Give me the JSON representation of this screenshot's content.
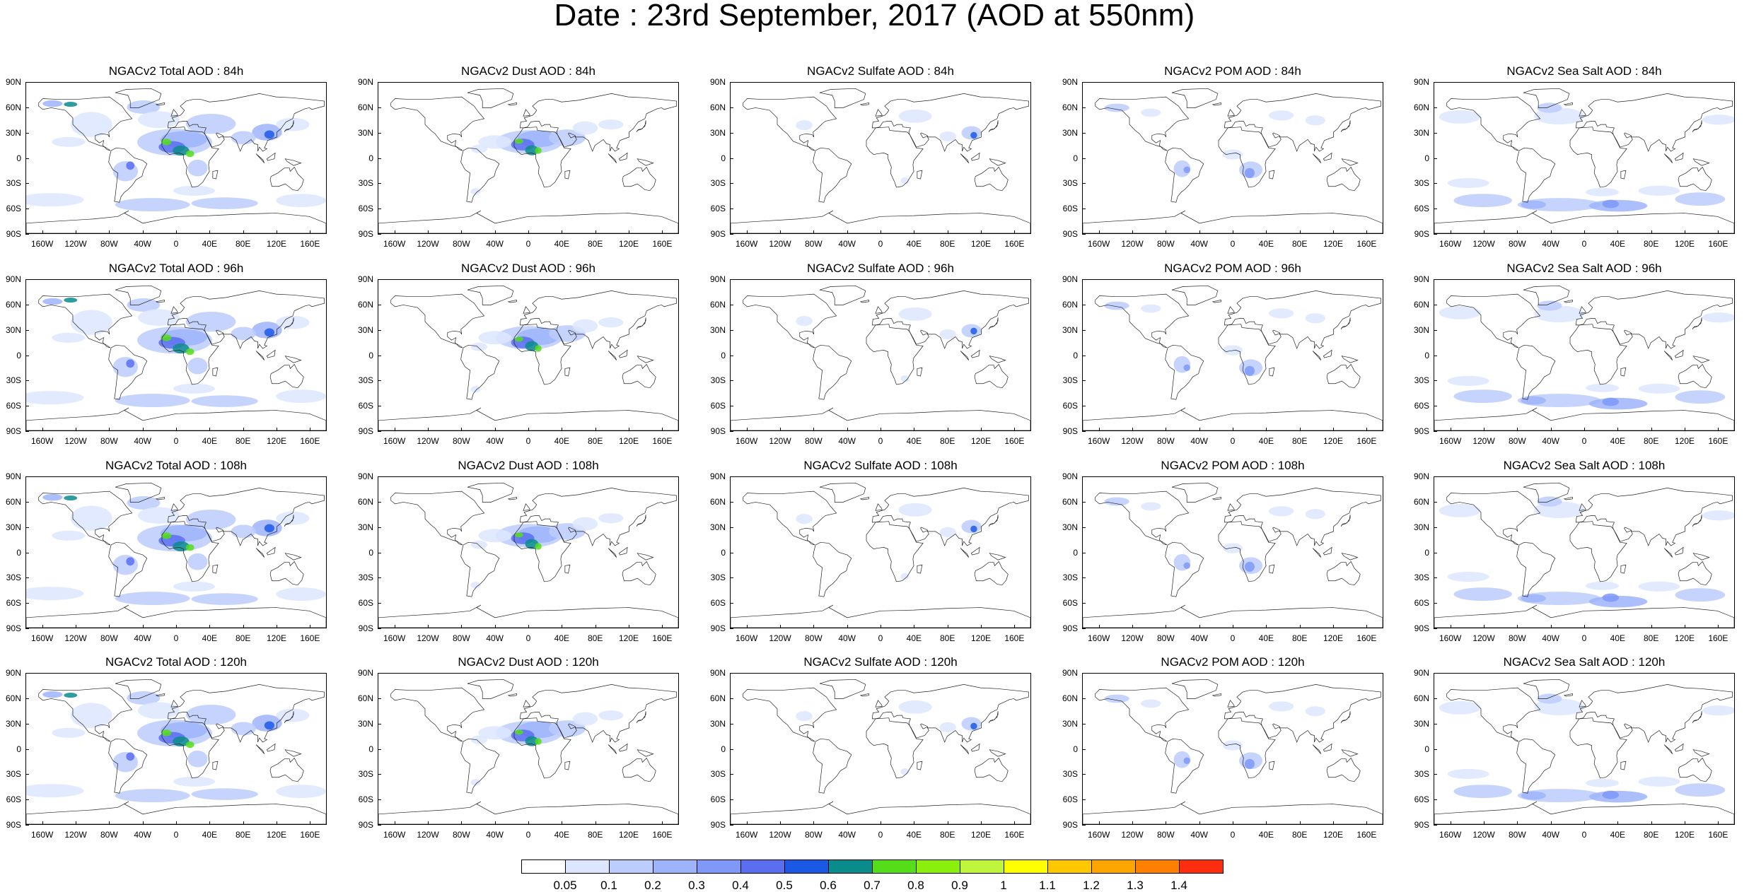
{
  "title": "Date : 23rd September, 2017 (AOD at 550nm)",
  "panels": [
    {
      "title": "NGACv2 Total AOD : 84h",
      "species": "total",
      "hour": 84
    },
    {
      "title": "NGACv2 Dust AOD : 84h",
      "species": "dust",
      "hour": 84
    },
    {
      "title": "NGACv2 Sulfate AOD : 84h",
      "species": "sulfate",
      "hour": 84
    },
    {
      "title": "NGACv2 POM AOD : 84h",
      "species": "pom",
      "hour": 84
    },
    {
      "title": "NGACv2 Sea Salt AOD : 84h",
      "species": "seasalt",
      "hour": 84
    },
    {
      "title": "NGACv2 Total AOD : 96h",
      "species": "total",
      "hour": 96
    },
    {
      "title": "NGACv2 Dust AOD : 96h",
      "species": "dust",
      "hour": 96
    },
    {
      "title": "NGACv2 Sulfate AOD : 96h",
      "species": "sulfate",
      "hour": 96
    },
    {
      "title": "NGACv2 POM AOD : 96h",
      "species": "pom",
      "hour": 96
    },
    {
      "title": "NGACv2 Sea Salt AOD : 96h",
      "species": "seasalt",
      "hour": 96
    },
    {
      "title": "NGACv2 Total AOD : 108h",
      "species": "total",
      "hour": 108
    },
    {
      "title": "NGACv2 Dust AOD : 108h",
      "species": "dust",
      "hour": 108
    },
    {
      "title": "NGACv2 Sulfate AOD : 108h",
      "species": "sulfate",
      "hour": 108
    },
    {
      "title": "NGACv2 POM AOD : 108h",
      "species": "pom",
      "hour": 108
    },
    {
      "title": "NGACv2 Sea Salt AOD : 108h",
      "species": "seasalt",
      "hour": 108
    },
    {
      "title": "NGACv2 Total AOD : 120h",
      "species": "total",
      "hour": 120
    },
    {
      "title": "NGACv2 Dust AOD : 120h",
      "species": "dust",
      "hour": 120
    },
    {
      "title": "NGACv2 Sulfate AOD : 120h",
      "species": "sulfate",
      "hour": 120
    },
    {
      "title": "NGACv2 POM AOD : 120h",
      "species": "pom",
      "hour": 120
    },
    {
      "title": "NGACv2 Sea Salt  AOD : 120h",
      "species": "seasalt",
      "hour": 120
    }
  ],
  "map_axes": {
    "lat_labels": [
      "90N",
      "60N",
      "30N",
      "0",
      "30S",
      "60S",
      "90S"
    ],
    "lon_labels": [
      "160W",
      "120W",
      "80W",
      "40W",
      "0",
      "40E",
      "80E",
      "120E",
      "160E"
    ]
  },
  "colorbar": {
    "labels": [
      "0.05",
      "0.1",
      "0.2",
      "0.3",
      "0.4",
      "0.5",
      "0.6",
      "0.7",
      "0.8",
      "0.9",
      "1",
      "1.1",
      "1.2",
      "1.3",
      "1.4"
    ],
    "colors": [
      "#ffffff",
      "#dde6ff",
      "#bccdfd",
      "#9db4fb",
      "#7e99f8",
      "#5a6ef0",
      "#1c58e6",
      "#0a8c8c",
      "#55dd1a",
      "#88f00a",
      "#bff53a",
      "#ffff00",
      "#ffc800",
      "#ffa500",
      "#ff7f00",
      "#ff2d10"
    ]
  }
}
